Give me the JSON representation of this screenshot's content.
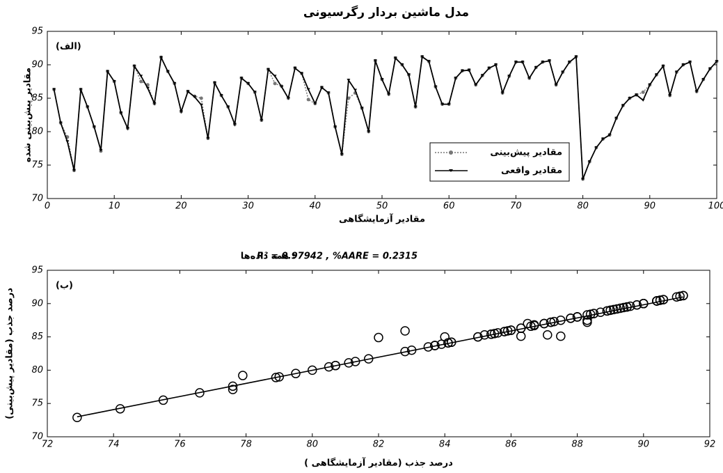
{
  "chart_data": [
    {
      "type": "line",
      "title": "مدل ماشین بردار رگرسیونی",
      "panel_label": "(الف)",
      "xlabel": "مقادیر آزمایشگاهی",
      "ylabel": "مقادیر پیش‌بینی شده",
      "x": [
        1,
        2,
        3,
        4,
        5,
        6,
        7,
        8,
        9,
        10,
        11,
        12,
        13,
        14,
        15,
        16,
        17,
        18,
        19,
        20,
        21,
        22,
        23,
        24,
        25,
        26,
        27,
        28,
        29,
        30,
        31,
        32,
        33,
        34,
        35,
        36,
        37,
        38,
        39,
        40,
        41,
        42,
        43,
        44,
        45,
        46,
        47,
        48,
        49,
        50,
        51,
        52,
        53,
        54,
        55,
        56,
        57,
        58,
        59,
        60,
        61,
        62,
        63,
        64,
        65,
        66,
        67,
        68,
        69,
        70,
        71,
        72,
        73,
        74,
        75,
        76,
        77,
        78,
        79,
        80,
        81,
        82,
        83,
        84,
        85,
        86,
        87,
        88,
        89,
        90,
        91,
        92,
        93,
        94,
        95,
        96,
        97,
        98,
        99,
        100
      ],
      "series": [
        {
          "name": "مقادیر پیش‌بینی",
          "color": "#777777",
          "style": "dotted",
          "values": [
            86.3,
            81.3,
            79.2,
            74.2,
            86.3,
            83.7,
            80.7,
            77.1,
            89,
            87.5,
            82.8,
            80.5,
            89.8,
            87.5,
            87,
            84.2,
            91.1,
            89,
            87.2,
            83,
            86,
            85.3,
            85,
            79,
            87.3,
            85.4,
            83.7,
            81.1,
            88,
            87.2,
            85.9,
            81.7,
            89.3,
            87.2,
            86.8,
            85,
            89.5,
            88.7,
            84.8,
            84.2,
            86.6,
            85.8,
            80.7,
            76.6,
            85,
            85.8,
            83.5,
            80,
            90.6,
            87.8,
            85.6,
            91,
            90,
            88.5,
            83.7,
            91.2,
            90.5,
            86.7,
            84.1,
            84.1,
            88,
            89.1,
            89.2,
            87,
            88.4,
            89.5,
            90,
            85.8,
            88.3,
            90.4,
            90.4,
            88,
            89.6,
            90.4,
            90.6,
            87,
            88.9,
            90.4,
            91.2,
            72.9,
            75.5,
            77.6,
            78.9,
            79.5,
            82,
            83.9,
            85,
            85.5,
            85.9,
            87,
            88.5,
            89.8,
            85.4,
            88.9,
            90,
            90.4,
            86,
            87.8,
            89.4,
            90.5
          ]
        },
        {
          "name": "مقادیر واقعی",
          "color": "#000000",
          "style": "solid",
          "values": [
            86.3,
            81.3,
            78.5,
            74.2,
            86.3,
            83.7,
            80.7,
            77.2,
            89,
            87.5,
            82.8,
            80.5,
            89.8,
            88.3,
            86.5,
            84.2,
            91.1,
            89,
            87.2,
            83,
            86,
            85.2,
            84,
            79,
            87.3,
            85.4,
            83.7,
            81.1,
            88,
            87.2,
            85.9,
            81.7,
            89.3,
            88.3,
            86.7,
            85,
            89.5,
            88.7,
            86.3,
            84.2,
            86.6,
            85.8,
            80.7,
            76.6,
            87.7,
            86.2,
            83.5,
            80,
            90.6,
            87.8,
            85.6,
            91,
            90,
            88.5,
            83.7,
            91.2,
            90.5,
            86.7,
            84.1,
            84.1,
            88,
            89.1,
            89.2,
            87,
            88.4,
            89.5,
            90,
            85.8,
            88.3,
            90.4,
            90.4,
            88,
            89.6,
            90.4,
            90.6,
            87,
            88.9,
            90.4,
            91.2,
            72.9,
            75.5,
            77.6,
            78.9,
            79.5,
            82,
            83.9,
            85,
            85.5,
            84.7,
            87,
            88.5,
            89.8,
            85.4,
            88.9,
            90,
            90.4,
            86,
            87.8,
            89.4,
            90.5
          ]
        }
      ],
      "xlim": [
        0,
        100
      ],
      "xticks": [
        0,
        10,
        20,
        30,
        40,
        50,
        60,
        70,
        80,
        90,
        100
      ],
      "ylim": [
        70,
        95
      ],
      "yticks": [
        70,
        75,
        80,
        85,
        90,
        95
      ]
    },
    {
      "type": "scatter",
      "panel_label": "(ب)",
      "annotation": "R² = 0.97942  ,  %AARE = 0.2315",
      "annotation_suffix": "همه داده‌ها :",
      "xlabel": "درصد جذب (مقادیر آزمایشگاهی )",
      "ylabel": "درصد جذب (مقادیر پیش‌بینی)",
      "x": [
        86.3,
        81.3,
        77.9,
        74.2,
        86.3,
        83.7,
        80.7,
        77.6,
        89,
        87.5,
        82.8,
        80.5,
        89.8,
        88.3,
        86.5,
        84.2,
        91.1,
        89,
        87.2,
        83,
        86,
        85.2,
        84,
        79,
        87.3,
        85.4,
        83.7,
        81.1,
        88,
        87.2,
        85.9,
        81.7,
        89.3,
        88.3,
        86.7,
        85,
        89.5,
        88.7,
        86.3,
        84.2,
        86.6,
        85.8,
        80.7,
        76.6,
        87.5,
        87.1,
        83.5,
        80,
        90.6,
        87.8,
        85.6,
        91,
        90,
        88.5,
        83.7,
        91.2,
        90.5,
        86.7,
        84.1,
        84.1,
        88,
        89.1,
        89.2,
        87,
        88.4,
        89.5,
        90,
        85.8,
        88.3,
        90.4,
        90.4,
        88,
        89.6,
        90.4,
        90.6,
        87,
        88.9,
        90.4,
        91.2,
        72.9,
        75.5,
        77.6,
        78.9,
        79.5,
        82,
        83.9,
        85,
        85.5,
        82.8,
        87,
        88.5,
        89.8,
        85.4,
        88.9,
        90,
        90.4,
        86,
        87.8,
        89.4,
        90.5
      ],
      "values": [
        86.3,
        81.3,
        79.2,
        74.2,
        86.3,
        83.7,
        80.7,
        77.1,
        89,
        87.5,
        82.8,
        80.5,
        89.8,
        87.5,
        87,
        84.2,
        91.1,
        89,
        87.2,
        83,
        86,
        85.3,
        85,
        79,
        87.3,
        85.4,
        83.7,
        81.1,
        88,
        87.2,
        85.9,
        81.7,
        89.3,
        87.2,
        86.8,
        85,
        89.5,
        88.7,
        85.1,
        84.2,
        86.6,
        85.8,
        80.7,
        76.6,
        85.1,
        85.3,
        83.5,
        80,
        90.6,
        87.8,
        85.6,
        91,
        90,
        88.5,
        83.7,
        91.2,
        90.5,
        86.7,
        84.1,
        84.1,
        88,
        89.1,
        89.2,
        87,
        88.4,
        89.5,
        90,
        85.8,
        88.3,
        90.4,
        90.4,
        88,
        89.6,
        90.4,
        90.6,
        87,
        88.9,
        90.4,
        91.2,
        72.9,
        75.5,
        77.6,
        78.9,
        79.5,
        84.9,
        83.9,
        85,
        85.5,
        85.9,
        87,
        88.5,
        89.8,
        85.4,
        88.9,
        90,
        90.4,
        86,
        87.8,
        89.4,
        90.5
      ],
      "fit": {
        "x": [
          72.9,
          91.2
        ],
        "values": [
          73,
          91
        ]
      },
      "xlim": [
        72,
        92
      ],
      "xticks": [
        72,
        74,
        76,
        78,
        80,
        82,
        84,
        86,
        88,
        90,
        92
      ],
      "ylim": [
        70,
        95
      ],
      "yticks": [
        70,
        75,
        80,
        85,
        90,
        95
      ]
    }
  ]
}
